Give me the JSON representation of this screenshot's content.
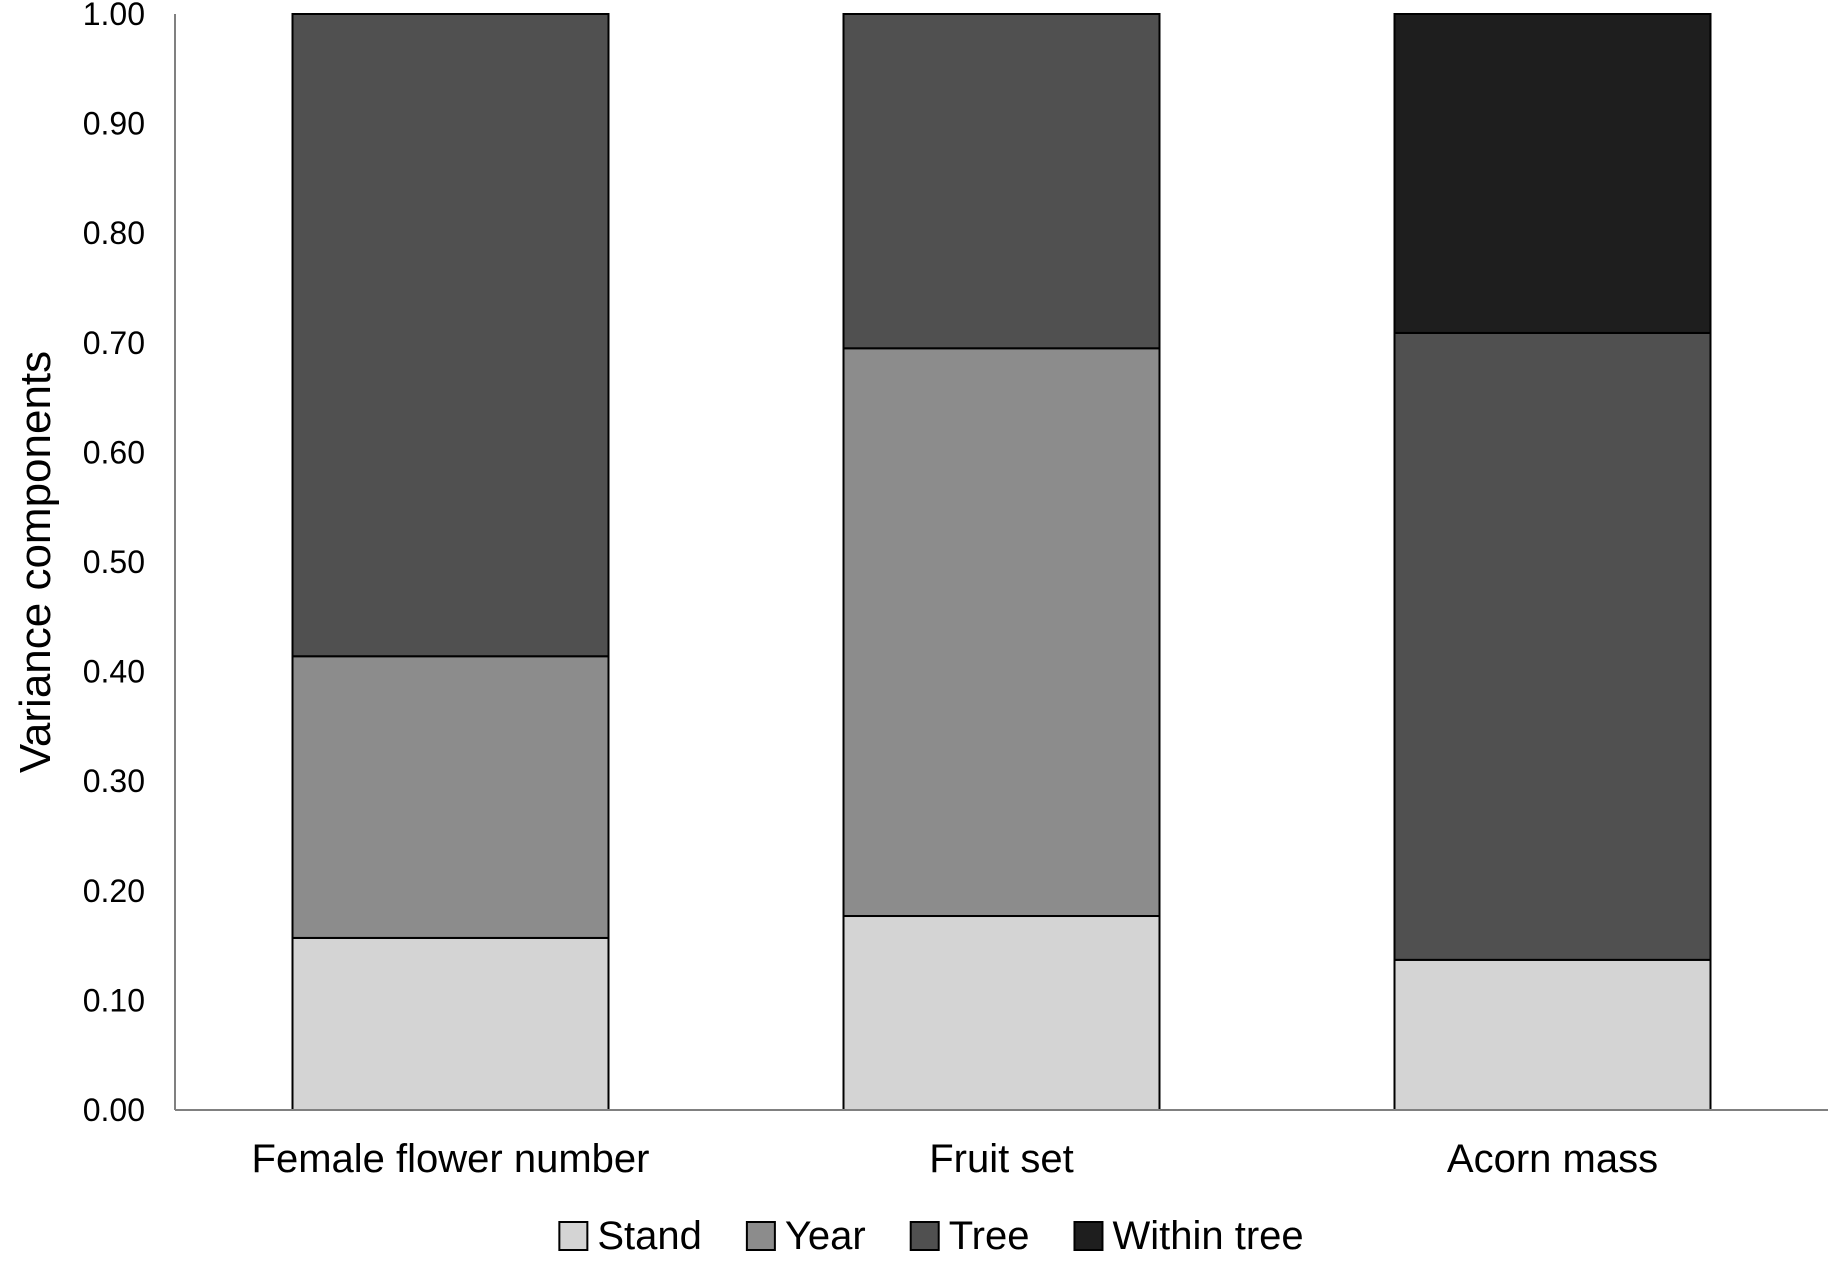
{
  "chart_data": {
    "type": "bar",
    "stacked": true,
    "categories": [
      "Female flower number",
      "Fruit set",
      "Acorn mass"
    ],
    "series": [
      {
        "name": "Stand",
        "values": [
          0.157,
          0.177,
          0.137
        ],
        "color": "#d4d4d4"
      },
      {
        "name": "Year",
        "values": [
          0.257,
          0.518,
          0.0
        ],
        "color": "#8c8c8c"
      },
      {
        "name": "Tree",
        "values": [
          0.586,
          0.305,
          0.572
        ],
        "color": "#505050"
      },
      {
        "name": "Within tree",
        "values": [
          0.0,
          0.0,
          0.291
        ],
        "color": "#1e1e1e"
      }
    ],
    "ylabel": "Variance components",
    "xlabel": "",
    "ylim": [
      0,
      1.0
    ],
    "yticks": [
      "0.00",
      "0.10",
      "0.20",
      "0.30",
      "0.40",
      "0.50",
      "0.60",
      "0.70",
      "0.80",
      "0.90",
      "1.00"
    ],
    "grid": false,
    "legend_position": "bottom"
  }
}
